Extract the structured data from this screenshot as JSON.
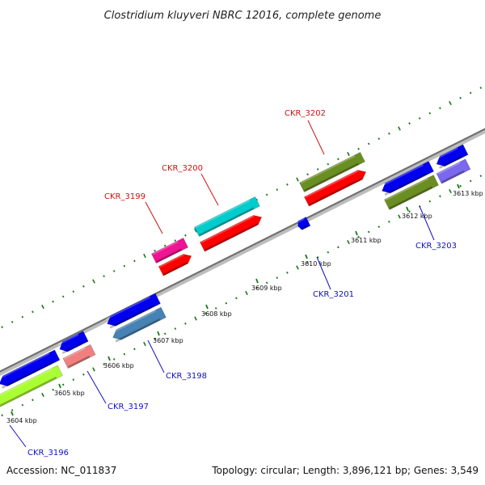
{
  "title": "Clostridium kluyveri NBRC 12016, complete genome",
  "footer": {
    "accession": "Accession: NC_011837",
    "summary": "Topology: circular; Length: 3,896,121 bp; Genes: 3,549"
  },
  "colors": {
    "strand": "#8a8a8a",
    "tick": "#1a7a1a",
    "label_forward": "#d01010",
    "label_reverse": "#1010c0",
    "blue": "#0000ee",
    "red": "#ff0000",
    "olive": "#6b8e23",
    "cyan": "#00cccc",
    "magenta": "#ee1493",
    "salmon": "#f08080",
    "lime": "#aaff33",
    "steel": "#4682b4",
    "slate": "#7b68ee"
  },
  "scale": {
    "ticks": [
      {
        "kbp": 3604,
        "label": "3604 kbp"
      },
      {
        "kbp": 3605,
        "label": "3605 kbp"
      },
      {
        "kbp": 3606,
        "label": "3606 kbp"
      },
      {
        "kbp": 3607,
        "label": "3607 kbp"
      },
      {
        "kbp": 3608,
        "label": "3608 kbp"
      },
      {
        "kbp": 3609,
        "label": "3609 kbp"
      },
      {
        "kbp": 3610,
        "label": "3610 kbp"
      },
      {
        "kbp": 3611,
        "label": "3611 kbp"
      },
      {
        "kbp": 3612,
        "label": "3612 kbp"
      },
      {
        "kbp": 3613,
        "label": "3613 kbp"
      }
    ]
  },
  "genes": [
    {
      "label": "CKR_3196",
      "strand": "reverse"
    },
    {
      "label": "CKR_3197",
      "strand": "reverse"
    },
    {
      "label": "CKR_3198",
      "strand": "reverse"
    },
    {
      "label": "CKR_3199",
      "strand": "forward"
    },
    {
      "label": "CKR_3200",
      "strand": "forward"
    },
    {
      "label": "CKR_3201",
      "strand": "reverse"
    },
    {
      "label": "CKR_3202",
      "strand": "forward"
    },
    {
      "label": "CKR_3203",
      "strand": "reverse"
    }
  ]
}
